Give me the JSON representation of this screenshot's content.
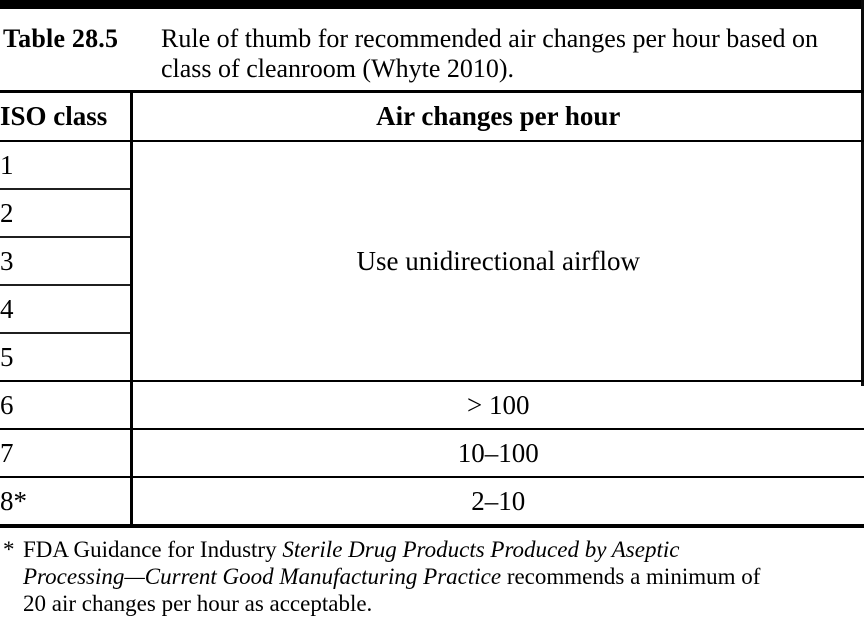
{
  "caption": {
    "label": "Table 28.5",
    "text": "Rule of thumb for recommended air changes per hour based on class of cleanroom (Whyte 2010)."
  },
  "table": {
    "col_headers": [
      "ISO class",
      "Air changes per hour"
    ],
    "merged_value": "Use unidirectional airflow",
    "rows": [
      {
        "iso": "1"
      },
      {
        "iso": "2"
      },
      {
        "iso": "3"
      },
      {
        "iso": "4"
      },
      {
        "iso": "5"
      },
      {
        "iso": "6",
        "value": "> 100"
      },
      {
        "iso": "7",
        "value": "10–100"
      },
      {
        "iso": "8*",
        "value": "2–10"
      }
    ]
  },
  "footnote": {
    "marker": "*",
    "part1": "FDA Guidance for Industry ",
    "part2_italic": "Sterile Drug Products Produced by Aseptic Processing—Current Good Manufacturing Practice",
    "part3": " recommends a minimum of 20 air changes per hour as acceptable."
  },
  "colors": {
    "rule": "#000000",
    "text": "#000000",
    "background": "#ffffff"
  }
}
